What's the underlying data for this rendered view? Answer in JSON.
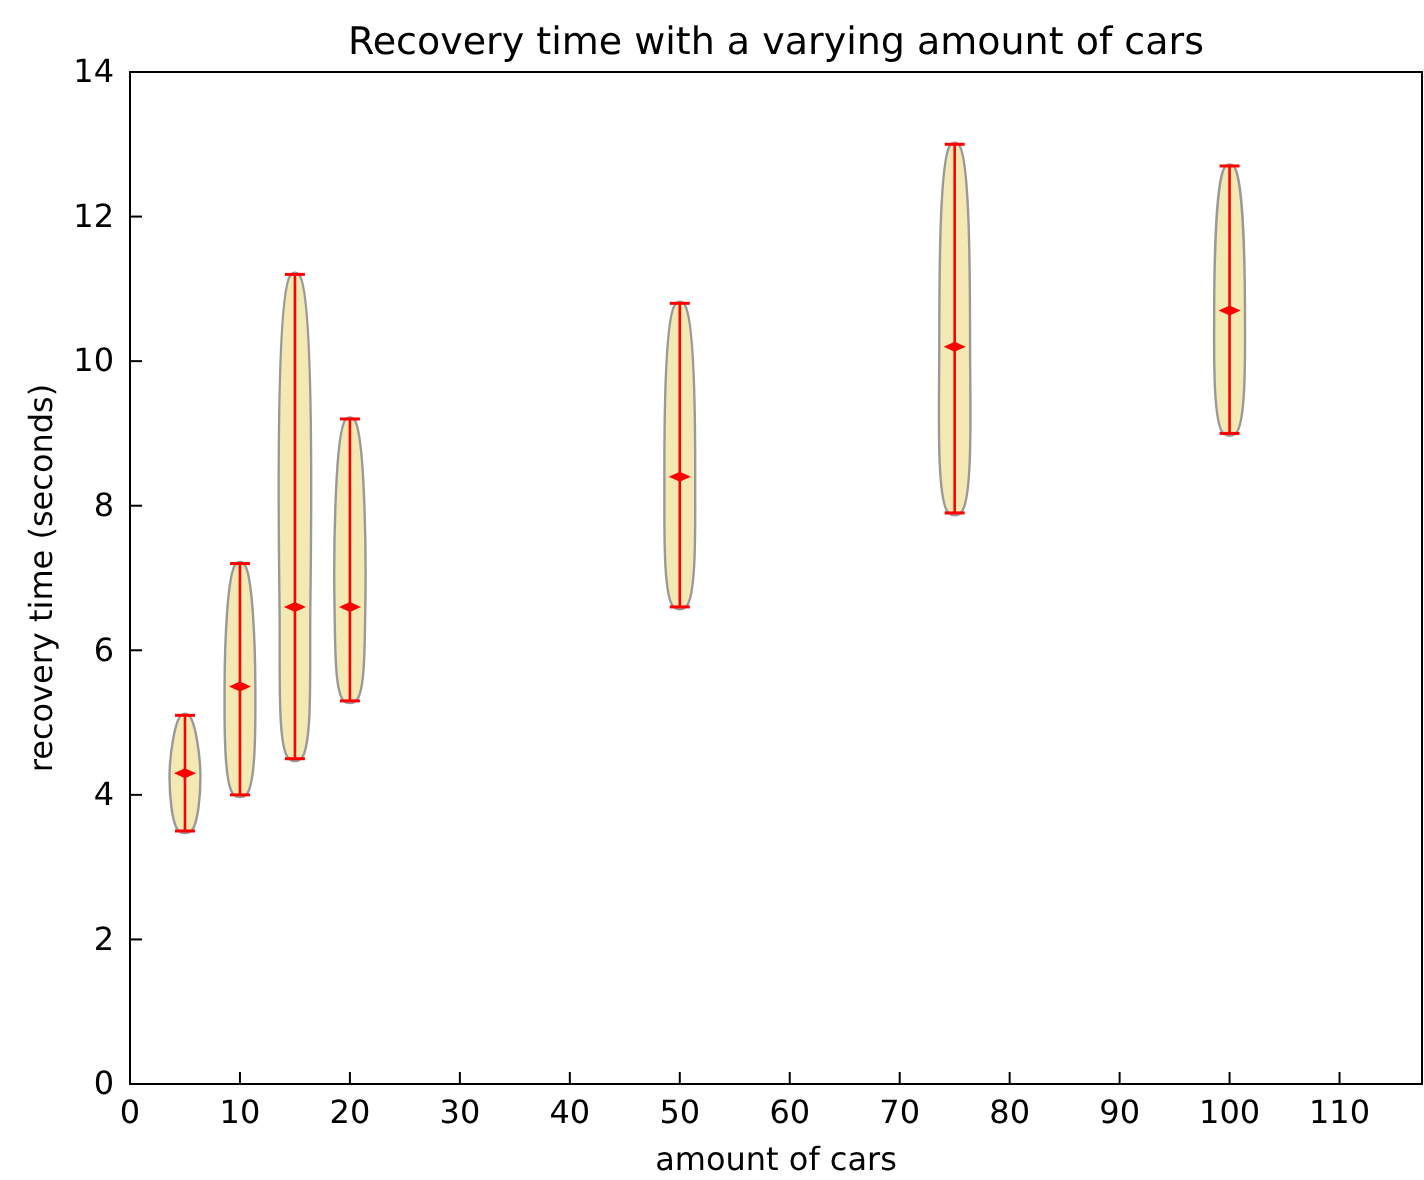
{
  "chart_data": {
    "type": "scatter",
    "title": "Recovery time with a varying amount of cars",
    "xlabel": "amount of cars",
    "ylabel": "recovery time (seconds)",
    "x": [
      5,
      10,
      15,
      20,
      50,
      75,
      100
    ],
    "values": [
      4.3,
      5.5,
      6.6,
      6.6,
      8.4,
      10.2,
      10.7
    ],
    "errors": [
      [
        3.5,
        5.1
      ],
      [
        4.0,
        7.2
      ],
      [
        4.5,
        11.2
      ],
      [
        5.3,
        9.2
      ],
      [
        6.6,
        10.8
      ],
      [
        7.9,
        13.0
      ],
      [
        9.0,
        12.7
      ]
    ],
    "color": "#ff0000",
    "marker": "diamond",
    "xlim": [
      0,
      117.5
    ],
    "xticks": [
      0,
      10,
      20,
      30,
      40,
      50,
      60,
      70,
      80,
      90,
      100,
      110
    ],
    "ylim": [
      0,
      14
    ],
    "yticks": [
      0,
      2,
      4,
      6,
      8,
      10,
      12,
      14
    ],
    "grid": false
  }
}
